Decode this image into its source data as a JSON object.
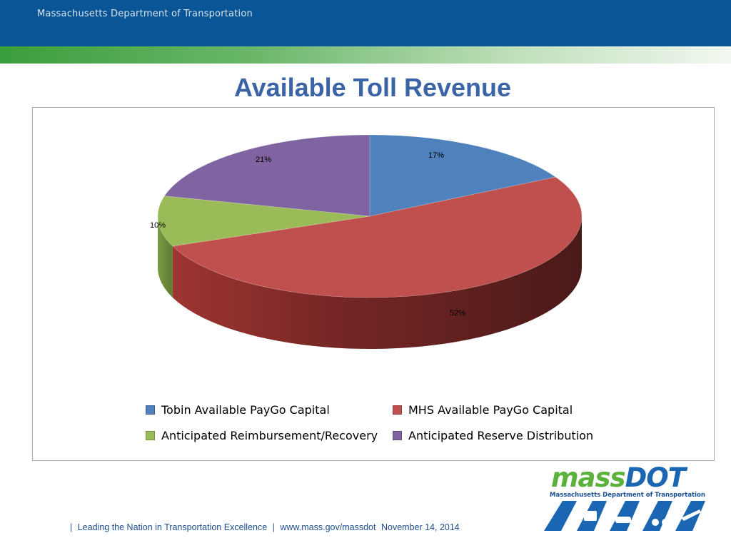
{
  "header": {
    "org_name": "Massachusetts Department of Transportation"
  },
  "slide": {
    "title": "Available Toll Revenue"
  },
  "chart_data": {
    "type": "pie",
    "style": "3d",
    "title": "",
    "series": [
      {
        "name": "Tobin Available PayGo Capital",
        "value": 17,
        "label": "17%",
        "color": "#4f81bd"
      },
      {
        "name": "MHS Available PayGo Capital",
        "value": 52,
        "label": "52%",
        "color": "#c0504d"
      },
      {
        "name": "Anticipated Reimbursement/Recovery",
        "value": 10,
        "label": "10%",
        "color": "#9bbb59"
      },
      {
        "name": "Anticipated Reserve Distribution",
        "value": 21,
        "label": "21%",
        "color": "#8064a2"
      }
    ],
    "legend": "bottom"
  },
  "footer": {
    "sep1": "|",
    "tagline": "Leading the Nation in Transportation Excellence",
    "sep2": "|",
    "url": "www.mass.gov/massdot",
    "date": "November 14, 2014"
  },
  "logo": {
    "word_mass": "mass",
    "word_dot": "DOT",
    "subtitle": "Massachusetts Department of Transportation"
  }
}
